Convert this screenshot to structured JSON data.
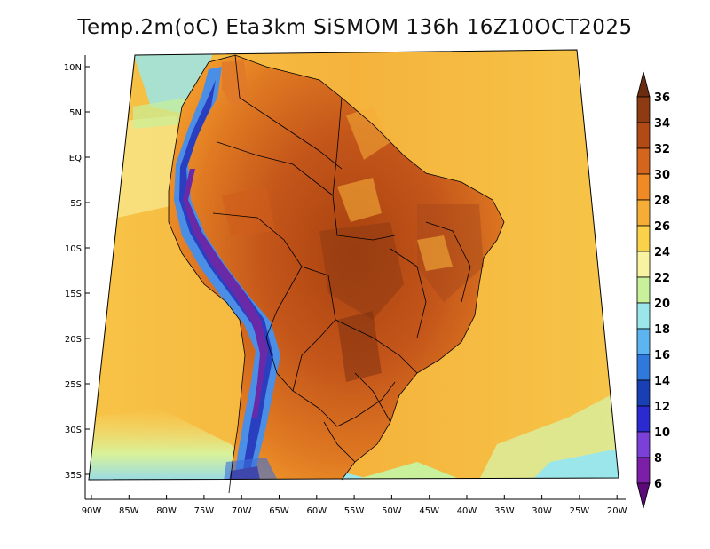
{
  "title": "Temp.2m(oC) Eta3km SiSMOM 136h 16Z10OCT2025",
  "lat_labels": [
    "10N",
    "5N",
    "EQ",
    "5S",
    "10S",
    "15S",
    "20S",
    "25S",
    "30S",
    "35S"
  ],
  "lon_labels": [
    "90W",
    "85W",
    "80W",
    "75W",
    "70W",
    "65W",
    "60W",
    "55W",
    "50W",
    "45W",
    "40W",
    "35W",
    "30W",
    "25W",
    "20W"
  ],
  "colorbar": {
    "labels": [
      "36",
      "34",
      "32",
      "30",
      "28",
      "26",
      "24",
      "22",
      "20",
      "18",
      "16",
      "14",
      "12",
      "10",
      "8",
      "6"
    ],
    "colors": [
      "#6b2c10",
      "#8e3a12",
      "#b14a15",
      "#d4651c",
      "#f08a25",
      "#f5ad38",
      "#f9d24a",
      "#f8f3a0",
      "#c9f09a",
      "#9be6ea",
      "#5cb4f0",
      "#2f78dc",
      "#1a3fb4",
      "#2b2ad0",
      "#7a40d8",
      "#7c1fa8",
      "#5c0a7a"
    ]
  }
}
